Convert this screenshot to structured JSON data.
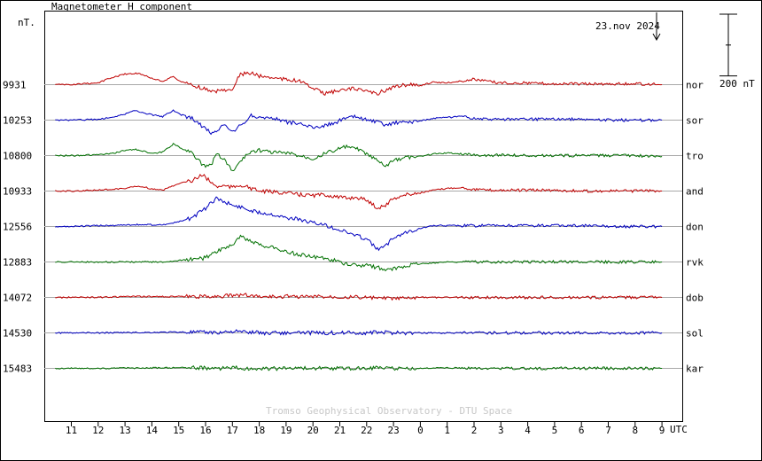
{
  "chart_data": {
    "type": "line",
    "title": "Magnetometer H component",
    "ylabel": "nT.",
    "xlabel": "UTC",
    "date_label": "23.nov 2024",
    "scale_label": "200 nT",
    "scale_nT": 200,
    "watermark": "Tromso Geophysical Observatory - DTU Space",
    "x_ticks": [
      "11",
      "12",
      "13",
      "14",
      "15",
      "16",
      "17",
      "18",
      "19",
      "20",
      "21",
      "22",
      "23",
      "0",
      "1",
      "2",
      "3",
      "4",
      "5",
      "6",
      "7",
      "8",
      "9"
    ],
    "grid": "horizontal baselines only",
    "series": [
      {
        "name": "nor",
        "baseline": "9931",
        "color": "#c00000",
        "x": [
          10.4,
          11.0,
          12.0,
          12.5,
          13.0,
          13.4,
          13.7,
          14.0,
          14.4,
          14.8,
          15.1,
          15.5,
          15.9,
          16.2,
          16.4,
          16.7,
          17.0,
          17.3,
          17.7,
          18.0,
          18.5,
          19.0,
          19.5,
          20.0,
          20.4,
          20.8,
          21.2,
          21.6,
          22.0,
          22.4,
          22.7,
          23.0,
          23.5,
          0.0,
          0.5,
          1.0,
          1.5,
          2.0,
          2.5,
          3.0,
          4.0,
          5.0,
          6.0,
          7.0,
          8.0,
          9.0
        ],
        "y": [
          0,
          0,
          10,
          40,
          60,
          65,
          55,
          35,
          20,
          45,
          15,
          0,
          -20,
          -40,
          -35,
          -30,
          -20,
          60,
          65,
          50,
          40,
          30,
          20,
          -20,
          -50,
          -40,
          -30,
          -20,
          -40,
          -50,
          -30,
          -15,
          0,
          -5,
          15,
          10,
          20,
          30,
          20,
          10,
          10,
          5,
          5,
          5,
          5,
          0
        ]
      },
      {
        "name": "sor",
        "baseline": "10253",
        "color": "#0000c0",
        "x": [
          10.4,
          11.0,
          12.0,
          12.5,
          13.0,
          13.4,
          13.7,
          14.0,
          14.4,
          14.8,
          15.1,
          15.5,
          15.9,
          16.2,
          16.4,
          16.7,
          17.0,
          17.3,
          17.7,
          18.0,
          18.5,
          19.0,
          19.5,
          20.0,
          20.4,
          20.8,
          21.2,
          21.6,
          22.0,
          22.4,
          22.7,
          23.0,
          23.5,
          0.0,
          0.5,
          1.0,
          1.5,
          2.0,
          2.5,
          3.0,
          4.0,
          5.0,
          6.0,
          7.0,
          8.0,
          9.0
        ],
        "y": [
          0,
          0,
          5,
          15,
          35,
          55,
          40,
          30,
          20,
          55,
          30,
          10,
          -40,
          -70,
          -60,
          -30,
          -70,
          -30,
          25,
          20,
          10,
          -10,
          -20,
          -40,
          -30,
          -15,
          10,
          20,
          0,
          -10,
          -30,
          -15,
          -10,
          -5,
          10,
          15,
          20,
          10,
          5,
          5,
          5,
          5,
          5,
          0,
          0,
          0
        ]
      },
      {
        "name": "tro",
        "baseline": "10800",
        "color": "#007000",
        "x": [
          10.4,
          11.0,
          12.0,
          12.5,
          13.0,
          13.4,
          13.7,
          14.0,
          14.4,
          14.8,
          15.1,
          15.5,
          15.9,
          16.2,
          16.4,
          16.7,
          17.0,
          17.3,
          17.7,
          18.0,
          18.5,
          19.0,
          19.5,
          20.0,
          20.4,
          20.8,
          21.2,
          21.6,
          22.0,
          22.4,
          22.7,
          23.0,
          23.5,
          0.0,
          0.5,
          1.0,
          1.5,
          2.0,
          2.5,
          3.0,
          4.0,
          5.0,
          6.0,
          7.0,
          8.0,
          9.0
        ],
        "y": [
          0,
          0,
          5,
          10,
          30,
          35,
          25,
          10,
          20,
          65,
          40,
          20,
          -60,
          -55,
          10,
          -20,
          -90,
          -30,
          25,
          30,
          20,
          15,
          0,
          -15,
          10,
          30,
          50,
          40,
          10,
          -30,
          -60,
          -30,
          -10,
          -5,
          10,
          15,
          10,
          5,
          0,
          5,
          0,
          0,
          0,
          0,
          0,
          -5
        ]
      },
      {
        "name": "and",
        "baseline": "10933",
        "color": "#c00000",
        "x": [
          10.4,
          11.0,
          12.0,
          12.5,
          13.0,
          13.4,
          13.7,
          14.0,
          14.4,
          14.8,
          15.1,
          15.5,
          15.9,
          16.2,
          16.4,
          16.7,
          17.0,
          17.3,
          17.7,
          18.0,
          18.5,
          19.0,
          19.5,
          20.0,
          20.4,
          20.8,
          21.2,
          21.6,
          22.0,
          22.4,
          22.7,
          23.0,
          23.5,
          0.0,
          0.5,
          1.0,
          1.5,
          2.0,
          2.5,
          3.0,
          4.0,
          5.0,
          6.0,
          7.0,
          8.0,
          9.0
        ],
        "y": [
          0,
          0,
          5,
          10,
          15,
          25,
          25,
          10,
          5,
          30,
          50,
          60,
          90,
          50,
          25,
          30,
          20,
          35,
          15,
          0,
          -5,
          -10,
          -20,
          -25,
          -20,
          -30,
          -40,
          -35,
          -50,
          -95,
          -80,
          -40,
          -20,
          -10,
          5,
          15,
          20,
          10,
          5,
          5,
          5,
          5,
          0,
          0,
          0,
          0
        ]
      },
      {
        "name": "don",
        "baseline": "12556",
        "color": "#0000c0",
        "x": [
          10.4,
          11.0,
          12.0,
          12.5,
          13.0,
          13.4,
          13.7,
          14.0,
          14.4,
          14.8,
          15.1,
          15.5,
          15.9,
          16.2,
          16.4,
          16.7,
          17.0,
          17.3,
          17.7,
          18.0,
          18.5,
          19.0,
          19.5,
          20.0,
          20.4,
          20.8,
          21.2,
          21.6,
          22.0,
          22.4,
          22.7,
          23.0,
          23.5,
          0.0,
          0.5,
          1.0,
          1.5,
          2.0,
          2.5,
          3.0,
          4.0,
          5.0,
          6.0,
          7.0,
          8.0,
          9.0
        ],
        "y": [
          0,
          0,
          5,
          5,
          10,
          10,
          10,
          10,
          10,
          20,
          30,
          50,
          90,
          130,
          160,
          140,
          120,
          110,
          90,
          80,
          70,
          50,
          40,
          20,
          10,
          -10,
          -30,
          -50,
          -70,
          -130,
          -110,
          -60,
          -30,
          -10,
          5,
          5,
          5,
          5,
          5,
          5,
          5,
          5,
          5,
          0,
          0,
          0
        ]
      },
      {
        "name": "rvk",
        "baseline": "12883",
        "color": "#007000",
        "x": [
          10.4,
          11.0,
          12.0,
          12.5,
          13.0,
          13.4,
          13.7,
          14.0,
          14.4,
          14.8,
          15.1,
          15.5,
          15.9,
          16.2,
          16.4,
          16.7,
          17.0,
          17.3,
          17.7,
          18.0,
          18.5,
          19.0,
          19.5,
          20.0,
          20.4,
          20.8,
          21.2,
          21.6,
          22.0,
          22.4,
          22.7,
          23.0,
          23.5,
          0.0,
          0.5,
          1.0,
          1.5,
          2.0,
          2.5,
          3.0,
          4.0,
          5.0,
          6.0,
          7.0,
          8.0,
          9.0
        ],
        "y": [
          0,
          0,
          0,
          0,
          0,
          0,
          0,
          0,
          0,
          5,
          10,
          15,
          20,
          40,
          60,
          80,
          100,
          140,
          120,
          100,
          80,
          60,
          40,
          30,
          20,
          10,
          -10,
          -20,
          -20,
          -30,
          -50,
          -40,
          -20,
          -10,
          -5,
          0,
          0,
          0,
          0,
          0,
          0,
          0,
          0,
          0,
          0,
          0
        ]
      },
      {
        "name": "dob",
        "baseline": "14072",
        "color": "#c00000",
        "x": [
          10.4,
          11.0,
          12.0,
          13.0,
          14.0,
          15.0,
          16.0,
          16.5,
          17.0,
          17.5,
          18.0,
          19.0,
          20.0,
          21.0,
          22.0,
          22.5,
          23.0,
          23.5,
          0.0,
          1.0,
          2.0,
          3.0,
          4.0,
          5.0,
          6.0,
          7.0,
          8.0,
          9.0
        ],
        "y": [
          0,
          0,
          0,
          5,
          5,
          5,
          5,
          8,
          10,
          15,
          5,
          5,
          5,
          5,
          0,
          -5,
          -5,
          -5,
          0,
          0,
          0,
          0,
          0,
          0,
          0,
          0,
          0,
          0
        ]
      },
      {
        "name": "sol",
        "baseline": "14530",
        "color": "#0000c0",
        "x": [
          10.4,
          11.0,
          12.0,
          13.0,
          14.0,
          15.0,
          16.0,
          16.5,
          17.0,
          17.5,
          18.0,
          19.0,
          20.0,
          21.0,
          22.0,
          22.5,
          23.0,
          23.5,
          0.0,
          1.0,
          2.0,
          3.0,
          4.0,
          5.0,
          6.0,
          7.0,
          8.0,
          9.0
        ],
        "y": [
          0,
          0,
          0,
          2,
          3,
          5,
          3,
          3,
          10,
          5,
          0,
          0,
          0,
          0,
          0,
          5,
          0,
          0,
          0,
          0,
          0,
          0,
          0,
          0,
          0,
          0,
          0,
          0
        ]
      },
      {
        "name": "kar",
        "baseline": "15483",
        "color": "#007000",
        "x": [
          10.4,
          11.0,
          12.0,
          13.0,
          14.0,
          15.0,
          16.0,
          16.5,
          17.0,
          17.5,
          18.0,
          19.0,
          20.0,
          21.0,
          22.0,
          22.5,
          23.0,
          23.5,
          0.0,
          1.0,
          2.0,
          3.0,
          4.0,
          5.0,
          6.0,
          7.0,
          8.0,
          9.0
        ],
        "y": [
          0,
          0,
          0,
          2,
          2,
          4,
          2,
          0,
          3,
          0,
          -3,
          0,
          0,
          0,
          0,
          3,
          0,
          0,
          0,
          2,
          2,
          0,
          0,
          0,
          0,
          0,
          0,
          0
        ]
      }
    ]
  }
}
